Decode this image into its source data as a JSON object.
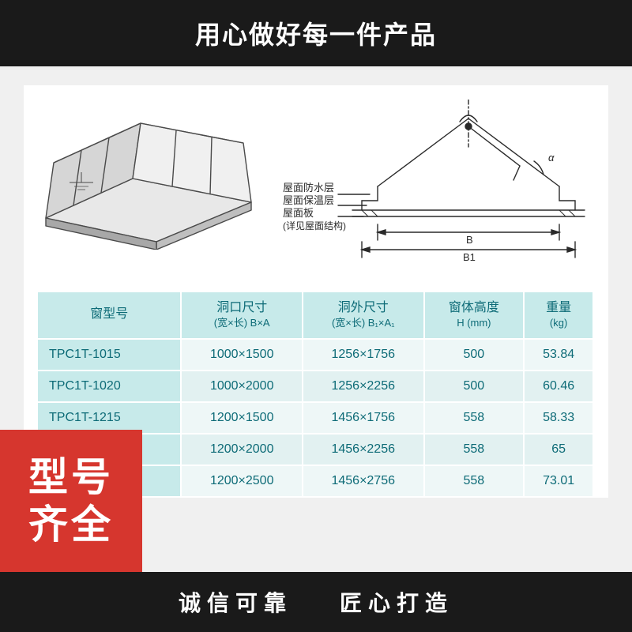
{
  "banners": {
    "top": "用心做好每一件产品",
    "bottom_left": "诚信可靠",
    "bottom_right": "匠心打造"
  },
  "badge": {
    "line1": "型号",
    "line2": "齐全",
    "bg_color": "#d6362e",
    "text_color": "#ffffff"
  },
  "diagram": {
    "iso": {
      "stroke": "#4a4a4a",
      "fill_light": "#e8e8e8",
      "fill_dark": "#bfbfbf"
    },
    "section": {
      "stroke": "#2a2a2a",
      "callouts": [
        "屋面防水层",
        "屋面保温层",
        "屋面板",
        "(详见屋面结构)"
      ],
      "dim_b": "B",
      "dim_b1": "B1",
      "angle": "α"
    }
  },
  "table": {
    "header_bg": "#c7eaea",
    "header_color": "#0d6b77",
    "row_bg_a": "#eef7f7",
    "row_bg_b": "#e2f1f1",
    "columns": [
      {
        "main": "窗型号",
        "sub": ""
      },
      {
        "main": "洞口尺寸",
        "sub": "(宽×长)\nB×A"
      },
      {
        "main": "洞外尺寸",
        "sub": "(宽×长)\nB₁×A₁"
      },
      {
        "main": "窗体高度",
        "sub": "H\n(mm)"
      },
      {
        "main": "重量",
        "sub": "(kg)"
      }
    ],
    "rows": [
      {
        "model": "TPC1T-1015",
        "opening": "1000×1500",
        "outer": "1256×1756",
        "height": "500",
        "weight": "53.84",
        "band": "a"
      },
      {
        "model": "TPC1T-1020",
        "opening": "1000×2000",
        "outer": "1256×2256",
        "height": "500",
        "weight": "60.46",
        "band": "b"
      },
      {
        "model": "TPC1T-1215",
        "opening": "1200×1500",
        "outer": "1456×1756",
        "height": "558",
        "weight": "58.33",
        "band": "a"
      },
      {
        "model": "",
        "opening": "1200×2000",
        "outer": "1456×2256",
        "height": "558",
        "weight": "65",
        "band": "b"
      },
      {
        "model": "",
        "opening": "1200×2500",
        "outer": "1456×2756",
        "height": "558",
        "weight": "73.01",
        "band": "a"
      }
    ]
  }
}
